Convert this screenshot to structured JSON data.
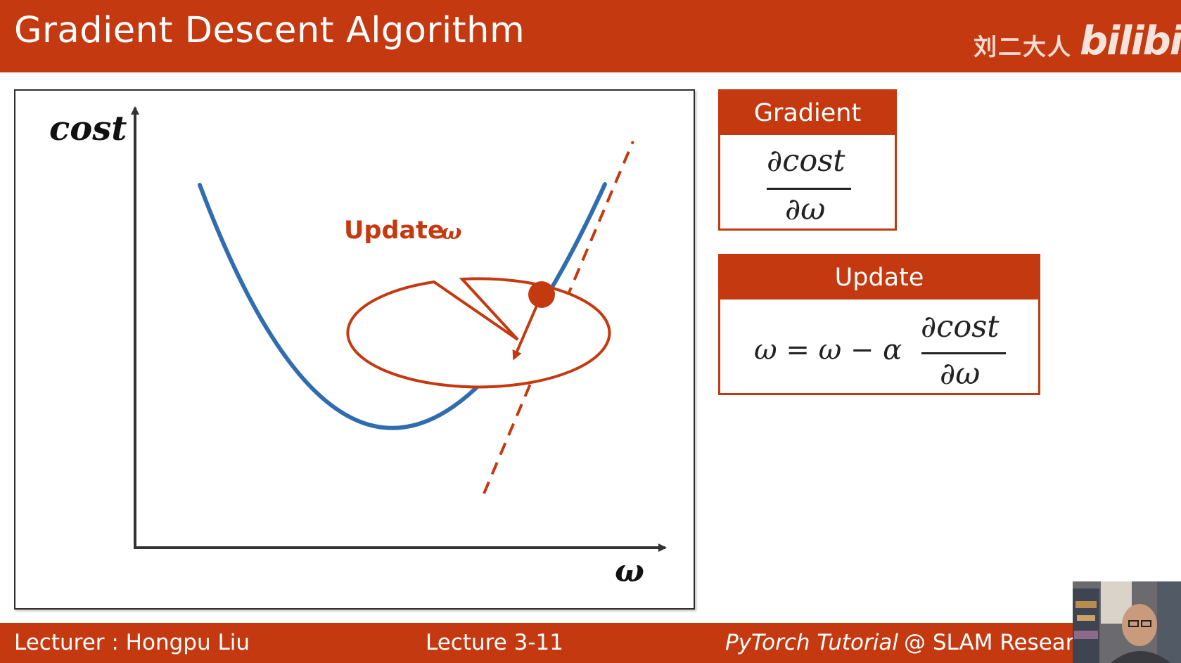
{
  "header": {
    "title": "Gradient Descent Algorithm",
    "watermark_text": "刘二大人",
    "watermark_logo": "bilibili",
    "color": "#c4390f"
  },
  "diagram": {
    "y_axis_label": "cost",
    "x_axis_label": "ω",
    "callout_text": "Update",
    "callout_symbol": "ω",
    "curve_color": "#2f6db0",
    "tangent_color": "#c4390f"
  },
  "gradient_box": {
    "title": "Gradient",
    "numerator": "∂cost",
    "denominator": "∂ω"
  },
  "update_box": {
    "title": "Update",
    "lhs": "ω = ω − α",
    "numerator": "∂cost",
    "denominator": "∂ω"
  },
  "footer": {
    "lecturer": "Lecturer : Hongpu Liu",
    "lecture": "Lecture 3-11",
    "course_italic": "PyTorch Tutorial",
    "course_rest": "@ SLAM Resear"
  }
}
